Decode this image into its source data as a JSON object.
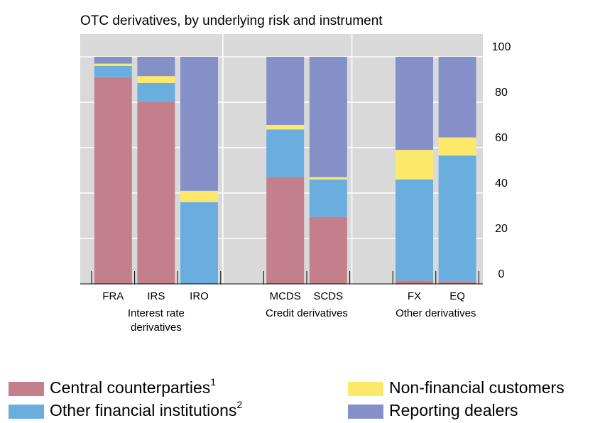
{
  "chart_data": {
    "type": "stacked_bar",
    "title": "OTC derivatives, by underlying risk and instrument",
    "categories": [
      "FRA",
      "IRS",
      "IRO",
      null,
      "MCDS",
      "SCDS",
      null,
      "FX",
      "EQ"
    ],
    "groups": [
      "Interest rate derivatives",
      "Credit derivatives",
      "Other derivatives"
    ],
    "series": [
      {
        "name": "Central counterparties",
        "footnote": "1",
        "color": "#c47f8c",
        "values": [
          91,
          80,
          0,
          null,
          47,
          29.5,
          null,
          1.5,
          1
        ]
      },
      {
        "name": "Other financial institutions",
        "footnote": "2",
        "color": "#6aaee0",
        "values": [
          5,
          8.5,
          36,
          null,
          21,
          16.5,
          null,
          44.5,
          55.5
        ]
      },
      {
        "name": "Non-financial customers",
        "color": "#fce96a",
        "values": [
          1,
          3,
          5,
          null,
          2,
          1,
          null,
          13,
          8
        ]
      },
      {
        "name": "Reporting dealers",
        "color": "#8590c8",
        "values": [
          3,
          8.5,
          59,
          null,
          30,
          53,
          null,
          41,
          35.5
        ]
      }
    ],
    "ylim": [
      0,
      110
    ],
    "yticks": [
      0,
      20,
      40,
      60,
      80,
      100
    ],
    "grid": true,
    "background": "#d9d9d9"
  }
}
